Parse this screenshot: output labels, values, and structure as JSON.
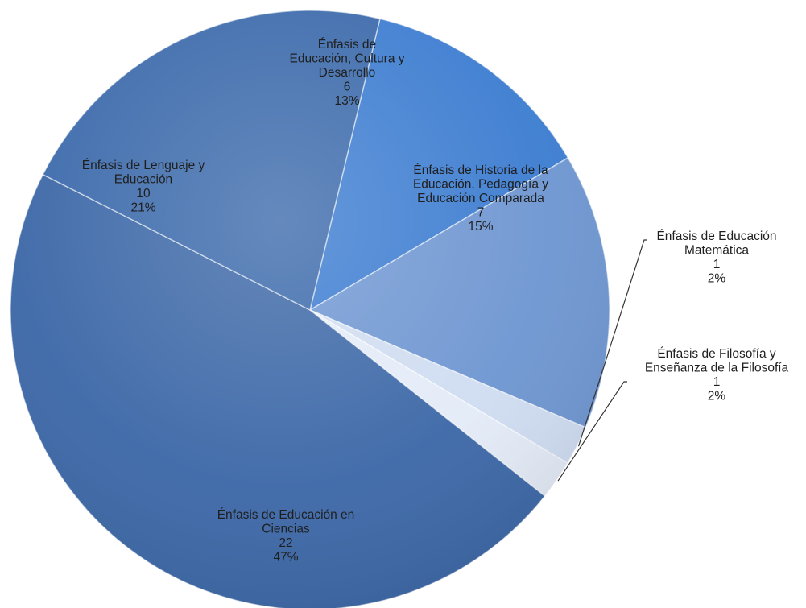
{
  "chart_data": {
    "type": "pie",
    "title": "",
    "slices": [
      {
        "label": [
          "Énfasis de",
          "Educación, Cultura y",
          "Desarrollo"
        ],
        "value": 6,
        "percent": "13%",
        "color": "#3a7bd0"
      },
      {
        "label": [
          "Énfasis de Historia de la",
          "Educación, Pedagogía y",
          "Educación Comparada"
        ],
        "value": 7,
        "percent": "15%",
        "color": "#6d95d1"
      },
      {
        "label": [
          "Énfasis de Educación",
          "Matemática"
        ],
        "value": 1,
        "percent": "2%",
        "color": "#cfdcf1"
      },
      {
        "label": [
          "Énfasis de Filosofía y",
          "Enseñanza de la Filosofía"
        ],
        "value": 1,
        "percent": "2%",
        "color": "#e3ebf7"
      },
      {
        "label": [
          "Énfasis de Educación en",
          "Ciencias"
        ],
        "value": 22,
        "percent": "47%",
        "color": "#3a66a6"
      },
      {
        "label": [
          "Énfasis de Lenguaje y",
          "Educación"
        ],
        "value": 10,
        "percent": "21%",
        "color": "#3968aa"
      }
    ],
    "data_labels": "inside",
    "legend": "none"
  }
}
